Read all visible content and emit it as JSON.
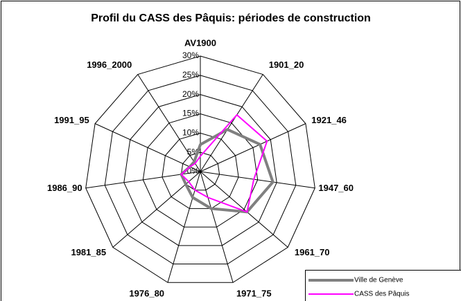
{
  "chart_data": {
    "type": "radar",
    "title": "Profil du CASS des Pâquis: périodes de construction",
    "categories": [
      "AV1900",
      "1901_20",
      "1921_46",
      "1947_60",
      "1961_70",
      "1971_75",
      "1976_80",
      "1981_85",
      "1986_90",
      "1991_95",
      "1996_2000"
    ],
    "series": [
      {
        "name": "Ville de Genève",
        "color": "#808080",
        "values": [
          7,
          13,
          17,
          19,
          16,
          10,
          7,
          5,
          5,
          3,
          3
        ]
      },
      {
        "name": "CASS des Pâquis",
        "color": "#ff00ff",
        "values": [
          4,
          17.5,
          19,
          14,
          16,
          7,
          5,
          4,
          5,
          3,
          2.5
        ]
      }
    ],
    "ylim": [
      0,
      30
    ],
    "yticks": [
      {
        "value": 0,
        "label": "0%"
      },
      {
        "value": 5,
        "label": "5%"
      },
      {
        "value": 10,
        "label": "10%"
      },
      {
        "value": 15,
        "label": "15%"
      },
      {
        "value": 20,
        "label": "20%"
      },
      {
        "value": 25,
        "label": "25%"
      },
      {
        "value": 30,
        "label": "30%"
      }
    ],
    "grid": true
  }
}
